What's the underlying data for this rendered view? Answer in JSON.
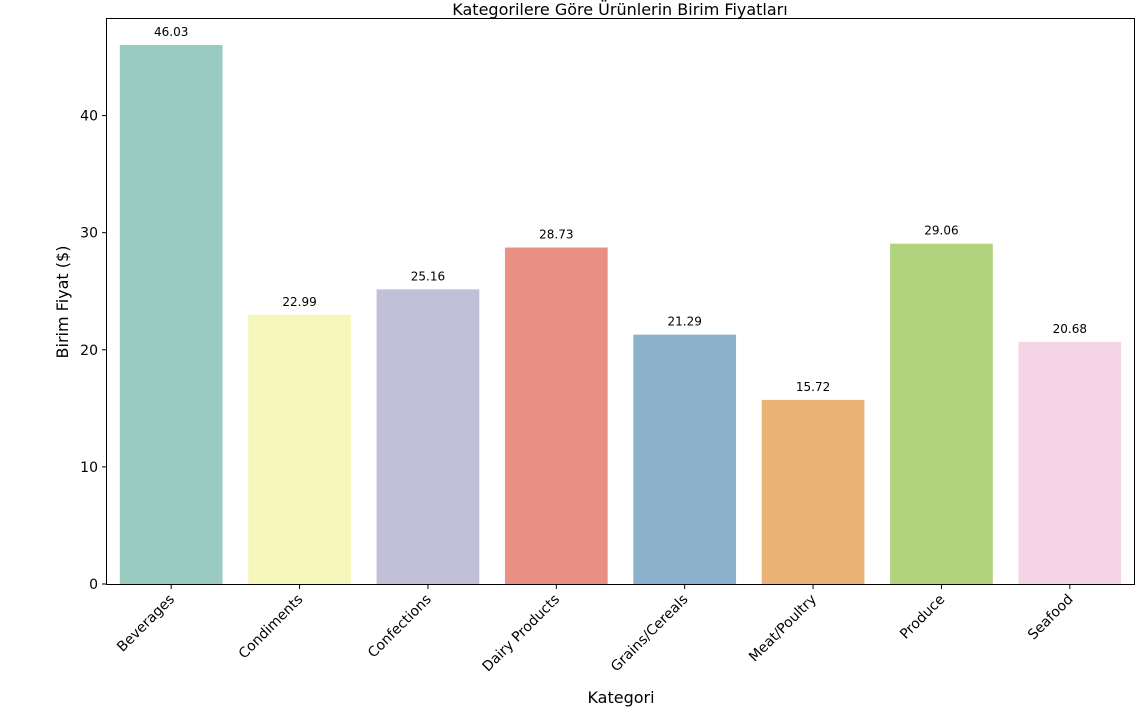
{
  "chart_data": {
    "type": "bar",
    "title": "Kategorilere Göre Ürünlerin Birim Fiyatları",
    "xlabel": "Kategori",
    "ylabel": "Birim Fiyat ($)",
    "categories": [
      "Beverages",
      "Condiments",
      "Confections",
      "Dairy Products",
      "Grains/Cereals",
      "Meat/Poultry",
      "Produce",
      "Seafood"
    ],
    "values": [
      46.03,
      22.99,
      25.16,
      28.73,
      21.29,
      15.72,
      29.06,
      20.68
    ],
    "data_labels": [
      "46.03",
      "22.99",
      "25.16",
      "28.73",
      "21.29",
      "15.72",
      "29.06",
      "20.68"
    ],
    "colors": [
      "#99cbc1",
      "#f7f7bc",
      "#c2bfd8",
      "#ea8f84",
      "#8bb1cc",
      "#ebb275",
      "#b0d37b",
      "#f5d4e5"
    ],
    "ylim": [
      0,
      48.33
    ],
    "yticks": [
      0,
      10,
      20,
      30,
      40
    ],
    "grid": false,
    "legend": "none"
  }
}
